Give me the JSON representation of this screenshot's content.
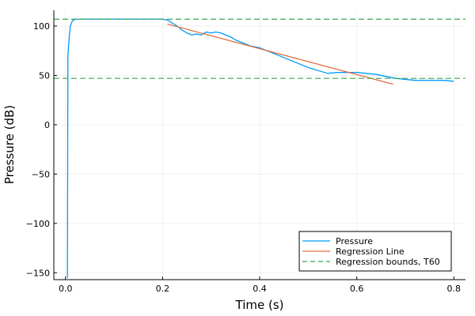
{
  "chart_data": {
    "type": "line",
    "title": "",
    "xlabel": "Time (s)",
    "ylabel": "Pressure (dB)",
    "xlim": [
      -0.024,
      0.824
    ],
    "ylim": [
      -157,
      116
    ],
    "xticks": [
      0.0,
      0.2,
      0.4,
      0.6,
      0.8
    ],
    "xtick_labels": [
      "0.0",
      "0.2",
      "0.4",
      "0.6",
      "0.8"
    ],
    "yticks": [
      -150,
      -100,
      -50,
      0,
      50,
      100
    ],
    "ytick_labels": [
      "−150",
      "−100",
      "−50",
      "0",
      "50",
      "100"
    ],
    "grid": true,
    "legend_position": "bottom-right",
    "series": [
      {
        "name": "Pressure",
        "color": "#009AFA",
        "style": "solid",
        "x": [
          0.003,
          0.004,
          0.005,
          0.006,
          0.008,
          0.01,
          0.013,
          0.016,
          0.02,
          0.03,
          0.05,
          0.1,
          0.15,
          0.2,
          0.21,
          0.22,
          0.23,
          0.24,
          0.25,
          0.26,
          0.27,
          0.28,
          0.29,
          0.3,
          0.31,
          0.32,
          0.33,
          0.34,
          0.35,
          0.36,
          0.37,
          0.38,
          0.39,
          0.4,
          0.42,
          0.44,
          0.46,
          0.48,
          0.5,
          0.52,
          0.54,
          0.56,
          0.58,
          0.6,
          0.62,
          0.64,
          0.66,
          0.68,
          0.7,
          0.72,
          0.74,
          0.76,
          0.78,
          0.8
        ],
        "y": [
          -155,
          -155,
          70,
          78,
          90,
          100,
          104,
          106,
          107,
          107,
          107,
          107,
          107,
          107,
          106,
          103,
          100,
          96,
          93,
          91,
          92,
          91,
          94,
          93,
          94,
          93,
          91,
          89,
          86,
          84,
          82,
          80,
          79,
          78,
          74,
          70,
          66,
          62,
          58,
          55,
          52,
          53,
          53,
          53,
          52,
          51,
          49,
          47,
          46,
          45,
          45,
          45,
          45,
          44
        ]
      },
      {
        "name": "Regression Line",
        "color": "#E26F46",
        "style": "solid",
        "x": [
          0.21,
          0.675
        ],
        "y": [
          102,
          41
        ]
      },
      {
        "name": "Regression bounds, T60",
        "color": "#3DA44D",
        "style": "dashed",
        "hlines": [
          107,
          47
        ]
      }
    ]
  }
}
